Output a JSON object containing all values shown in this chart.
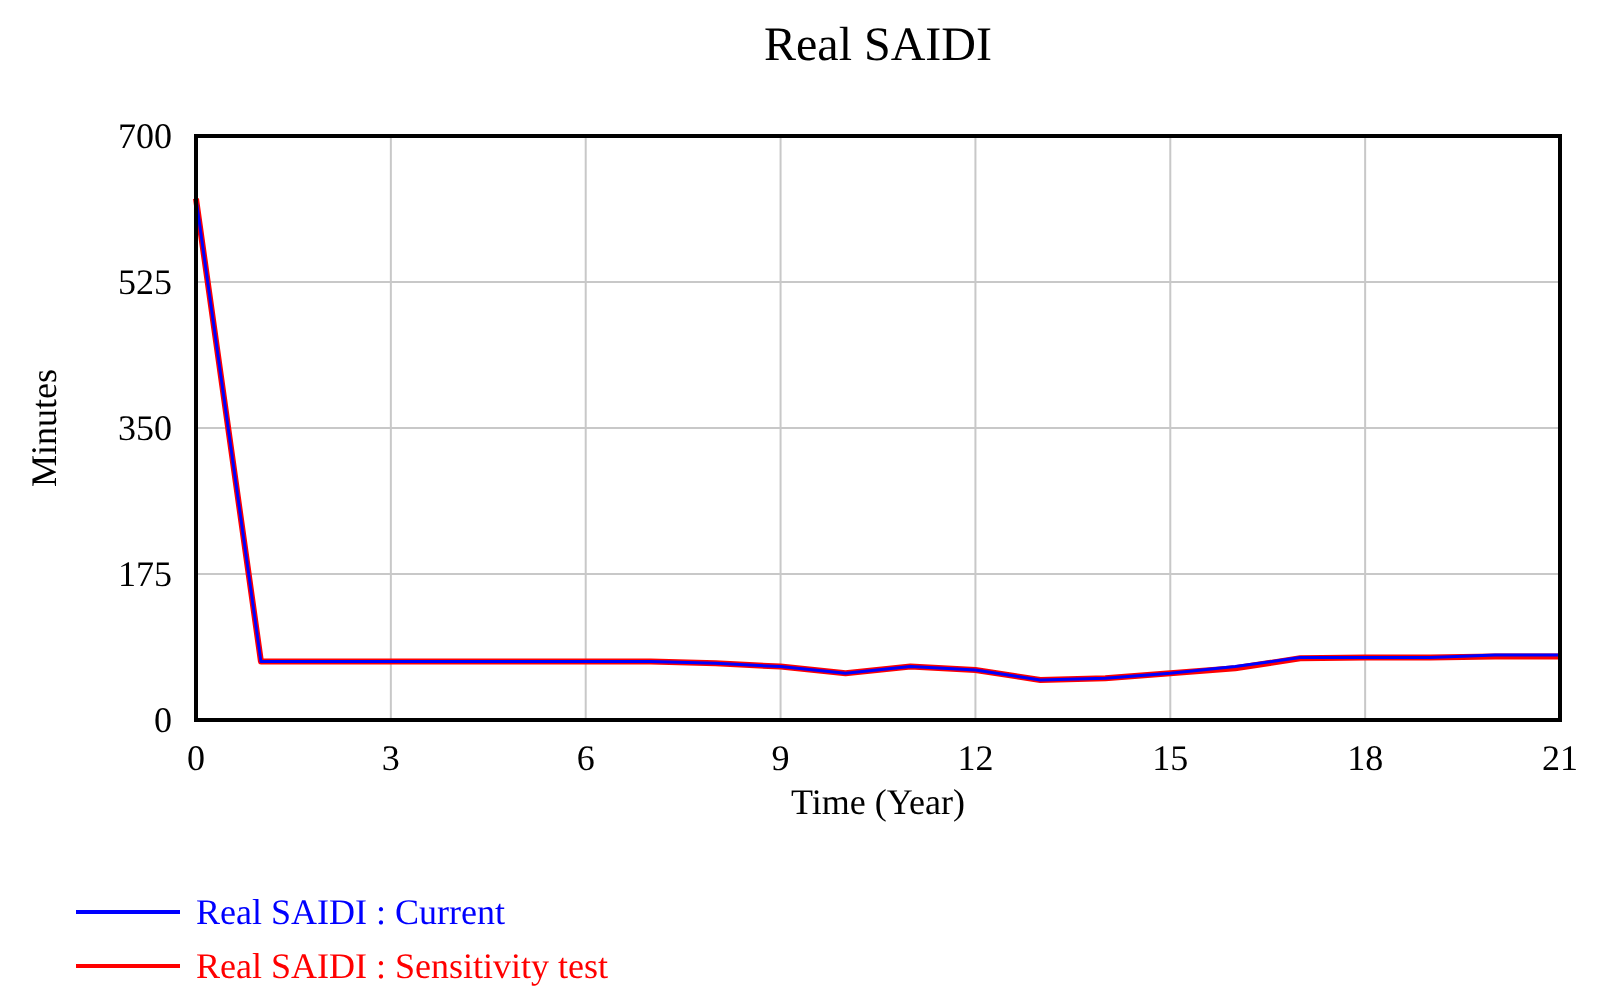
{
  "chart_data": {
    "type": "line",
    "title": "Real SAIDI",
    "xlabel": "Time (Year)",
    "ylabel": "Minutes",
    "x": [
      0,
      1,
      2,
      3,
      4,
      5,
      6,
      7,
      8,
      9,
      10,
      11,
      12,
      13,
      14,
      15,
      16,
      17,
      18,
      19,
      20,
      21
    ],
    "series": [
      {
        "name": "Real SAIDI : Current",
        "color": "#0000ff",
        "values": [
          625,
          70,
          70,
          70,
          70,
          70,
          70,
          70,
          68,
          64,
          56,
          64,
          60,
          48,
          50,
          56,
          64,
          75,
          75,
          75,
          78,
          78
        ]
      },
      {
        "name": "Real SAIDI : Sensitivity test",
        "color": "#ff0000",
        "values": [
          625,
          70,
          70,
          70,
          70,
          70,
          70,
          70,
          68,
          64,
          56,
          64,
          60,
          48,
          50,
          56,
          62,
          74,
          75,
          75,
          76,
          76
        ]
      }
    ],
    "xlim": [
      0,
      21
    ],
    "xticks": [
      0,
      3,
      6,
      9,
      12,
      15,
      18,
      21
    ],
    "ylim": [
      0,
      700
    ],
    "yticks": [
      0,
      175,
      350,
      525,
      700
    ],
    "grid": true,
    "legend": "bottom"
  }
}
